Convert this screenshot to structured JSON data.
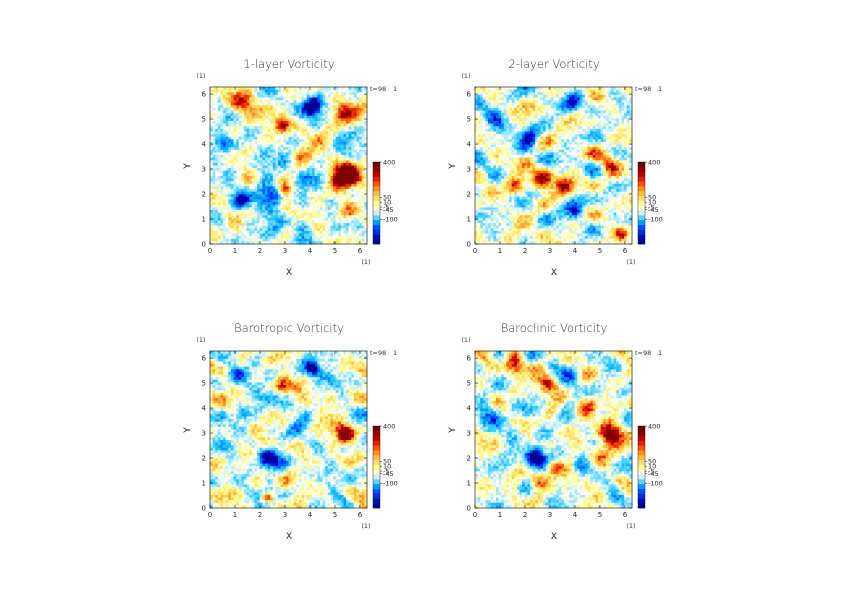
{
  "chart_data": [
    {
      "type": "heatmap",
      "title": "1-layer Vorticity",
      "xlabel": "X",
      "ylabel": "Y",
      "xlim": [
        0,
        6.283
      ],
      "ylim": [
        0,
        6.283
      ],
      "xticks": [
        "0",
        "1",
        "2",
        "3",
        "4",
        "5",
        "6"
      ],
      "yticks": [
        "0",
        "1",
        "2",
        "3",
        "4",
        "5",
        "6"
      ],
      "x_unit": "(1)",
      "y_unit": "(1)",
      "time_label": "t=98",
      "time_unit": "1",
      "colorbar": {
        "ticks": [
          "400",
          "50",
          "10",
          "-5",
          "-45",
          "-100"
        ],
        "range": [
          -150,
          400
        ]
      },
      "features": [
        {
          "x": 4.1,
          "y": 5.5,
          "r": 0.22,
          "v": -1
        },
        {
          "x": 2.4,
          "y": 2.0,
          "r": 0.35,
          "v": -1
        },
        {
          "x": 5.4,
          "y": 2.8,
          "r": 0.4,
          "v": 1
        },
        {
          "x": 1.4,
          "y": 5.7,
          "r": 0.3,
          "v": 0.8
        },
        {
          "x": 2.9,
          "y": 4.7,
          "r": 0.2,
          "v": 0.7
        },
        {
          "x": 0.5,
          "y": 4.0,
          "r": 0.25,
          "v": -0.7
        },
        {
          "x": 3.0,
          "y": 2.2,
          "r": 0.2,
          "v": 0.7
        },
        {
          "x": 5.3,
          "y": 5.2,
          "r": 0.3,
          "v": 0.5
        },
        {
          "x": 1.2,
          "y": 1.7,
          "r": 0.25,
          "v": -0.6
        },
        {
          "x": 3.8,
          "y": 0.8,
          "r": 0.3,
          "v": -0.5
        },
        {
          "x": 5.6,
          "y": 1.2,
          "r": 0.25,
          "v": 0.6
        }
      ],
      "seed": 11
    },
    {
      "type": "heatmap",
      "title": "2-layer Vorticity",
      "xlabel": "X",
      "ylabel": "Y",
      "xlim": [
        0,
        6.283
      ],
      "ylim": [
        0,
        6.283
      ],
      "xticks": [
        "0",
        "1",
        "2",
        "3",
        "4",
        "5",
        "6"
      ],
      "yticks": [
        "0",
        "1",
        "2",
        "3",
        "4",
        "5",
        "6"
      ],
      "x_unit": "(1)",
      "y_unit": "(1)",
      "time_label": "t=98",
      "time_unit": "1",
      "colorbar": {
        "ticks": [
          "400",
          "50",
          "10",
          "-5",
          "-45",
          "-100"
        ],
        "range": [
          -150,
          400
        ]
      },
      "features": [
        {
          "x": 3.9,
          "y": 5.6,
          "r": 0.25,
          "v": -0.5
        },
        {
          "x": 2.7,
          "y": 2.5,
          "r": 0.3,
          "v": 0.7
        },
        {
          "x": 3.6,
          "y": 2.3,
          "r": 0.25,
          "v": 0.6
        },
        {
          "x": 1.6,
          "y": 2.3,
          "r": 0.25,
          "v": 0.6
        },
        {
          "x": 2.2,
          "y": 4.3,
          "r": 0.25,
          "v": -0.6
        },
        {
          "x": 4.0,
          "y": 1.4,
          "r": 0.25,
          "v": -0.6
        },
        {
          "x": 5.4,
          "y": 3.2,
          "r": 0.3,
          "v": 0.5
        },
        {
          "x": 0.8,
          "y": 4.9,
          "r": 0.3,
          "v": -0.5
        },
        {
          "x": 5.9,
          "y": 0.4,
          "r": 0.2,
          "v": 0.7
        }
      ],
      "seed": 23
    },
    {
      "type": "heatmap",
      "title": "Barotropic Vorticity",
      "xlabel": "X",
      "ylabel": "Y",
      "xlim": [
        0,
        6.283
      ],
      "ylim": [
        0,
        6.283
      ],
      "xticks": [
        "0",
        "1",
        "2",
        "3",
        "4",
        "5",
        "6"
      ],
      "yticks": [
        "0",
        "1",
        "2",
        "3",
        "4",
        "5",
        "6"
      ],
      "x_unit": "(1)",
      "y_unit": "(1)",
      "time_label": "t=98",
      "time_unit": "1",
      "colorbar": {
        "ticks": [
          "400",
          "50",
          "10",
          "-5",
          "-45",
          "-100"
        ],
        "range": [
          -150,
          400
        ]
      },
      "features": [
        {
          "x": 4.1,
          "y": 5.6,
          "r": 0.22,
          "v": -1
        },
        {
          "x": 2.4,
          "y": 2.0,
          "r": 0.3,
          "v": -0.9
        },
        {
          "x": 5.4,
          "y": 2.9,
          "r": 0.3,
          "v": 0.8
        },
        {
          "x": 2.3,
          "y": 0.4,
          "r": 0.15,
          "v": 0.7
        },
        {
          "x": 2.9,
          "y": 4.8,
          "r": 0.2,
          "v": 0.5
        },
        {
          "x": 1.0,
          "y": 5.3,
          "r": 0.25,
          "v": -0.5
        },
        {
          "x": 1.3,
          "y": 3.8,
          "r": 0.2,
          "v": -0.5
        }
      ],
      "seed": 31
    },
    {
      "type": "heatmap",
      "title": "Baroclinic Vorticity",
      "xlabel": "X",
      "ylabel": "Y",
      "xlim": [
        0,
        6.283
      ],
      "ylim": [
        0,
        6.283
      ],
      "xticks": [
        "0",
        "1",
        "2",
        "3",
        "4",
        "5",
        "6"
      ],
      "yticks": [
        "0",
        "1",
        "2",
        "3",
        "4",
        "5",
        "6"
      ],
      "x_unit": "(1)",
      "y_unit": "(1)",
      "time_label": "t=98",
      "time_unit": "1",
      "colorbar": {
        "ticks": [
          "400",
          "50",
          "10",
          "-5",
          "-45",
          "-100"
        ],
        "range": [
          -150,
          400
        ]
      },
      "features": [
        {
          "x": 2.4,
          "y": 2.0,
          "r": 0.3,
          "v": -1
        },
        {
          "x": 5.4,
          "y": 2.9,
          "r": 0.35,
          "v": 1
        },
        {
          "x": 3.9,
          "y": 5.4,
          "r": 0.25,
          "v": -0.3
        },
        {
          "x": 2.9,
          "y": 5.0,
          "r": 0.25,
          "v": 0.6
        },
        {
          "x": 1.6,
          "y": 5.7,
          "r": 0.3,
          "v": 0.7
        },
        {
          "x": 2.5,
          "y": 1.0,
          "r": 0.25,
          "v": 0.6
        },
        {
          "x": 3.2,
          "y": 1.6,
          "r": 0.2,
          "v": 0.6
        },
        {
          "x": 0.9,
          "y": 3.6,
          "r": 0.3,
          "v": -0.5
        },
        {
          "x": 4.5,
          "y": 4.0,
          "r": 0.3,
          "v": 0.4
        }
      ],
      "seed": 47
    }
  ],
  "colors": {
    "colormap": [
      "#00008f",
      "#0000d8",
      "#0050ff",
      "#009fff",
      "#33ccff",
      "#9fe6ff",
      "#ffffff",
      "#ffffa0",
      "#ffdf60",
      "#ffa030",
      "#ff5000",
      "#d00000",
      "#800000"
    ],
    "colorbar_bands": [
      "#00008f",
      "#0010b0",
      "#0030d8",
      "#0050ff",
      "#009fff",
      "#60d0ff",
      "#d0f0ff",
      "#ffffd0",
      "#ffff90",
      "#ffe070",
      "#ffc040",
      "#ff9020",
      "#ff5000",
      "#e02000",
      "#c00000",
      "#900000",
      "#700000"
    ]
  }
}
